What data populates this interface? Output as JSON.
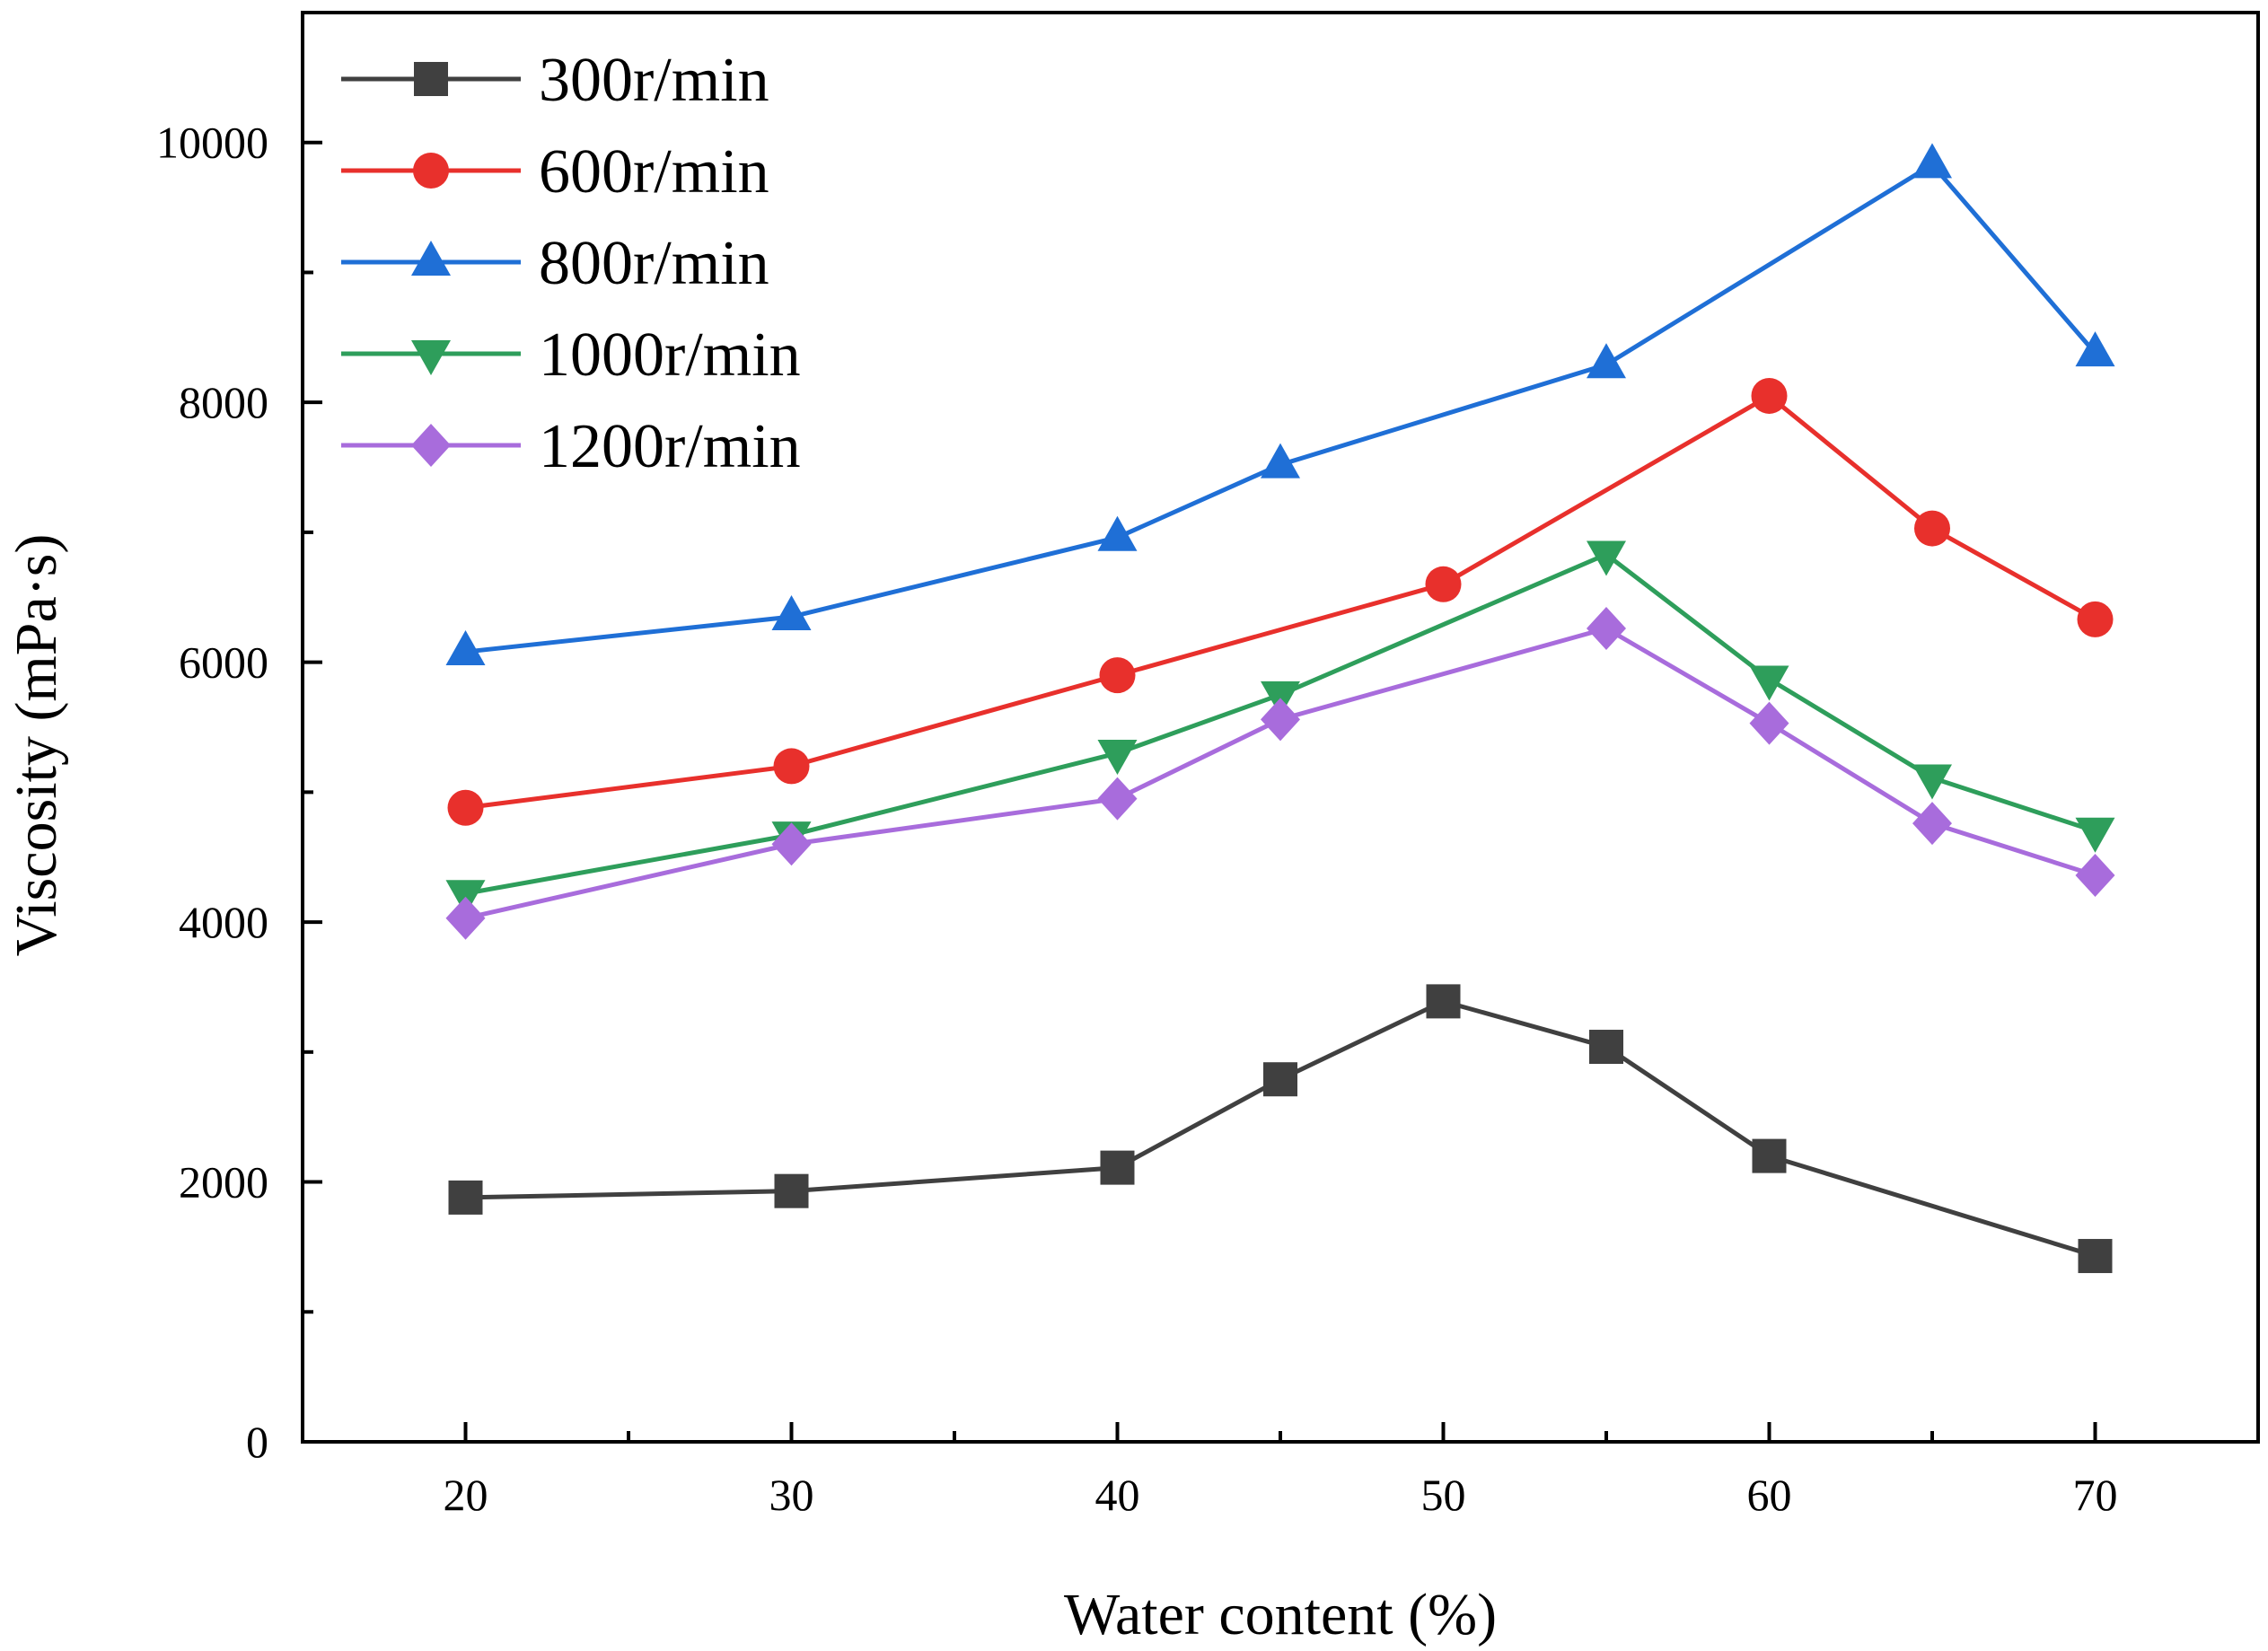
{
  "chart_data": {
    "type": "line",
    "title": "",
    "xlabel": "Water content (%)",
    "ylabel": "Viscosity (mPa·s)",
    "xlim": [
      15,
      75
    ],
    "ylim": [
      0,
      11000
    ],
    "x_ticks": [
      20,
      30,
      40,
      50,
      60,
      70
    ],
    "x_tick_labels": [
      "20",
      "30",
      "40",
      "50",
      "60",
      "70"
    ],
    "y_ticks": [
      0,
      2000,
      4000,
      6000,
      8000,
      10000
    ],
    "y_tick_labels": [
      "0",
      "2000",
      "4000",
      "6000",
      "8000",
      "10000"
    ],
    "grid": false,
    "legend_position": "top-left",
    "series": [
      {
        "name": "300r/min",
        "color": "#404040",
        "marker": "square",
        "points": [
          [
            20,
            1880
          ],
          [
            30,
            1930
          ],
          [
            40,
            2110
          ],
          [
            45,
            2790
          ],
          [
            50,
            3390
          ],
          [
            55,
            3040
          ],
          [
            60,
            2200
          ],
          [
            70,
            1430
          ]
        ]
      },
      {
        "name": "600r/min",
        "color": "#e8302c",
        "marker": "circle",
        "points": [
          [
            20,
            4880
          ],
          [
            30,
            5200
          ],
          [
            40,
            5900
          ],
          [
            50,
            6600
          ],
          [
            60,
            8050
          ],
          [
            65,
            7030
          ],
          [
            70,
            6330
          ]
        ]
      },
      {
        "name": "800r/min",
        "color": "#1f6fd6",
        "marker": "triangle-up",
        "points": [
          [
            20,
            6080
          ],
          [
            30,
            6350
          ],
          [
            40,
            6960
          ],
          [
            45,
            7520
          ],
          [
            55,
            8290
          ],
          [
            65,
            9830
          ],
          [
            70,
            8380
          ]
        ]
      },
      {
        "name": "1000r/min",
        "color": "#2e9e5b",
        "marker": "triangle-down",
        "points": [
          [
            20,
            4220
          ],
          [
            30,
            4670
          ],
          [
            40,
            5300
          ],
          [
            45,
            5750
          ],
          [
            55,
            6830
          ],
          [
            60,
            5870
          ],
          [
            65,
            5110
          ],
          [
            70,
            4700
          ]
        ]
      },
      {
        "name": "1200r/min",
        "color": "#a86cdc",
        "marker": "diamond",
        "points": [
          [
            20,
            4030
          ],
          [
            30,
            4600
          ],
          [
            40,
            4950
          ],
          [
            45,
            5560
          ],
          [
            55,
            6260
          ],
          [
            60,
            5530
          ],
          [
            65,
            4760
          ],
          [
            70,
            4360
          ]
        ]
      }
    ]
  }
}
